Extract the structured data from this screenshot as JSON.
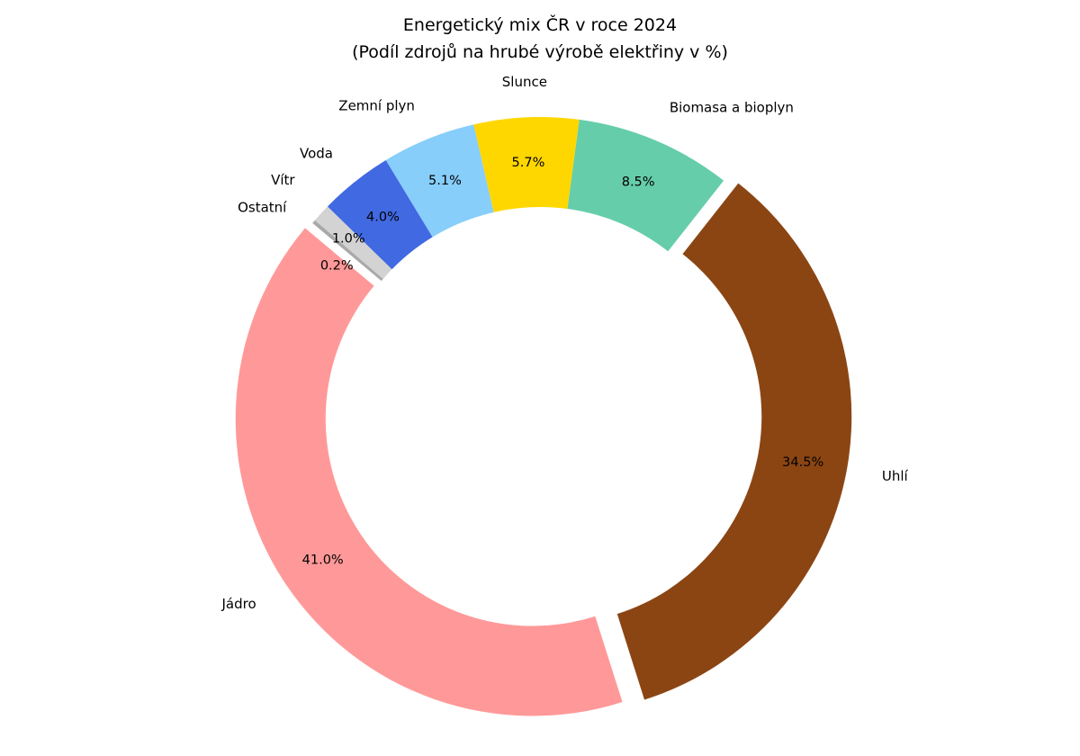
{
  "chart_data": {
    "type": "pie",
    "donut": true,
    "title": "Energetický mix ČR v roce 2024",
    "subtitle": "(Podíl zdrojů na hrubé výrobě elektřiny v %)",
    "categories": [
      "Jádro",
      "Uhlí",
      "Biomasa a bioplyn",
      "Slunce",
      "Zemní plyn",
      "Voda",
      "Vítr",
      "Ostatní"
    ],
    "values": [
      41.0,
      34.5,
      8.5,
      5.7,
      5.1,
      4.0,
      1.0,
      0.2
    ],
    "value_labels": [
      "41.0%",
      "34.5%",
      "8.5%",
      "5.7%",
      "5.1%",
      "4.0%",
      "1.0%",
      "0.2%"
    ],
    "colors": [
      "#ff9999",
      "#8b4513",
      "#66cdaa",
      "#ffd700",
      "#87cefa",
      "#4169e1",
      "#d3d3d3",
      "#a9a9a9"
    ],
    "explode": [
      0.03,
      0.05,
      0,
      0,
      0,
      0,
      0,
      0
    ],
    "start_angle_deg": 140,
    "direction": "counterclockwise",
    "legend": "none"
  }
}
